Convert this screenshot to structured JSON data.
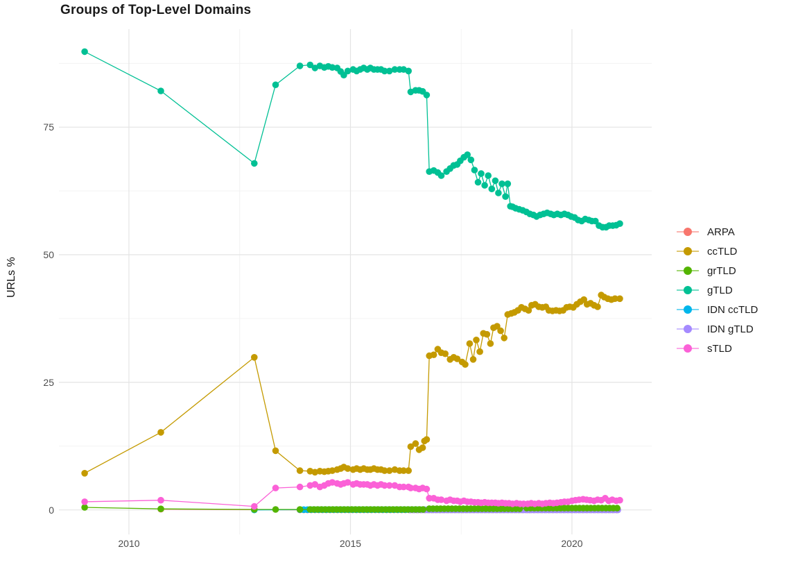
{
  "page": {
    "background": "#ffffff"
  },
  "chart_data": {
    "type": "line",
    "title": "Groups of Top-Level Domains",
    "xlabel": "",
    "ylabel": "URLs %",
    "xlim": [
      2008.42,
      2021.8
    ],
    "ylim": [
      -4.8,
      94.2
    ],
    "x_ticks": [
      {
        "value": 2010,
        "label": "2010"
      },
      {
        "value": 2015,
        "label": "2015"
      },
      {
        "value": 2020,
        "label": "2020"
      }
    ],
    "x_minor_ticks": [
      2012.5,
      2017.5
    ],
    "y_ticks": [
      {
        "value": 0,
        "label": "0"
      },
      {
        "value": 25,
        "label": "25"
      },
      {
        "value": 50,
        "label": "50"
      },
      {
        "value": 75,
        "label": "75"
      }
    ],
    "y_minor_ticks": [
      12.5,
      37.5,
      62.5,
      87.5
    ],
    "grid": "major+minor",
    "grid_major_color": "#e4e4e4",
    "grid_minor_color": "#f1f1f1",
    "legend_position": "right",
    "point_unit": [
      "year",
      "urls_percent"
    ],
    "draw_order": [
      "ARPA",
      "IDN ccTLD",
      "IDN gTLD",
      "gTLD",
      "ccTLD",
      "grTLD",
      "sTLD"
    ],
    "series": [
      {
        "name": "ARPA",
        "color": "#F8766D",
        "points": [
          [
            2010.72,
            0.15
          ],
          [
            2012.83,
            0.05
          ]
        ],
        "runs": [
          [
            2013.86,
            2021.08,
            0.02
          ]
        ]
      },
      {
        "name": "ccTLD",
        "color": "#C49A00",
        "points": [
          [
            2009,
            7.2
          ],
          [
            2010.72,
            15.2
          ],
          [
            2012.83,
            29.9
          ],
          [
            2013.31,
            11.6
          ],
          [
            2013.86,
            7.7
          ],
          [
            2014.09,
            7.6
          ],
          [
            2014.2,
            7.4
          ],
          [
            2014.31,
            7.6
          ],
          [
            2014.41,
            7.5
          ],
          [
            2014.5,
            7.6
          ],
          [
            2014.59,
            7.7
          ],
          [
            2014.7,
            7.9
          ],
          [
            2014.78,
            8.1
          ],
          [
            2014.85,
            8.4
          ],
          [
            2014.94,
            8.1
          ],
          [
            2015.06,
            7.9
          ],
          [
            2015.14,
            8.1
          ],
          [
            2015.22,
            7.9
          ],
          [
            2015.3,
            8.1
          ],
          [
            2015.38,
            7.9
          ],
          [
            2015.45,
            7.9
          ],
          [
            2015.53,
            8.1
          ],
          [
            2015.61,
            7.9
          ],
          [
            2015.69,
            7.9
          ],
          [
            2015.77,
            7.7
          ],
          [
            2015.88,
            7.7
          ],
          [
            2016,
            7.9
          ],
          [
            2016.11,
            7.7
          ],
          [
            2016.2,
            7.7
          ],
          [
            2016.31,
            7.7
          ],
          [
            2016.36,
            12.4
          ],
          [
            2016.47,
            13
          ],
          [
            2016.55,
            11.8
          ],
          [
            2016.63,
            12.2
          ],
          [
            2016.67,
            13.5
          ],
          [
            2016.72,
            13.8
          ],
          [
            2016.78,
            30.2
          ],
          [
            2016.88,
            30.4
          ],
          [
            2016.97,
            31.5
          ],
          [
            2017.05,
            30.8
          ],
          [
            2017.14,
            30.6
          ],
          [
            2017.25,
            29.5
          ],
          [
            2017.33,
            29.9
          ],
          [
            2017.41,
            29.6
          ],
          [
            2017.52,
            29
          ],
          [
            2017.59,
            28.5
          ],
          [
            2017.69,
            32.6
          ],
          [
            2017.77,
            29.5
          ],
          [
            2017.84,
            33.3
          ],
          [
            2017.92,
            31
          ],
          [
            2018,
            34.6
          ],
          [
            2018.08,
            34.4
          ],
          [
            2018.16,
            32.6
          ],
          [
            2018.23,
            35.7
          ],
          [
            2018.31,
            36
          ],
          [
            2018.39,
            35.1
          ],
          [
            2018.47,
            33.7
          ],
          [
            2018.55,
            38.3
          ],
          [
            2018.63,
            38.5
          ],
          [
            2018.7,
            38.7
          ],
          [
            2018.78,
            39.1
          ],
          [
            2018.86,
            39.7
          ],
          [
            2018.94,
            39.4
          ],
          [
            2019.02,
            39.1
          ],
          [
            2019.09,
            40.1
          ],
          [
            2019.17,
            40.3
          ],
          [
            2019.25,
            39.8
          ],
          [
            2019.33,
            39.7
          ],
          [
            2019.41,
            39.8
          ],
          [
            2019.48,
            39.1
          ],
          [
            2019.56,
            39
          ],
          [
            2019.64,
            39.1
          ],
          [
            2019.72,
            39
          ],
          [
            2019.8,
            39.1
          ],
          [
            2019.88,
            39.7
          ],
          [
            2019.95,
            39.8
          ],
          [
            2020.03,
            39.7
          ],
          [
            2020.11,
            40.3
          ],
          [
            2020.19,
            40.8
          ],
          [
            2020.27,
            41.2
          ],
          [
            2020.34,
            40.3
          ],
          [
            2020.42,
            40.5
          ],
          [
            2020.5,
            40.1
          ],
          [
            2020.58,
            39.8
          ],
          [
            2020.66,
            42.1
          ],
          [
            2020.73,
            41.7
          ],
          [
            2020.81,
            41.4
          ],
          [
            2020.89,
            41.2
          ],
          [
            2020.97,
            41.4
          ],
          [
            2021.08,
            41.4
          ]
        ],
        "runs": []
      },
      {
        "name": "grTLD",
        "color": "#53B400",
        "points": [
          [
            2009,
            0.5
          ],
          [
            2010.72,
            0.2
          ],
          [
            2012.83,
            0.1
          ],
          [
            2013.31,
            0.1
          ],
          [
            2013.86,
            0.1
          ]
        ],
        "runs": [
          [
            2014.09,
            2016.72,
            0.1
          ],
          [
            2016.78,
            2018.9,
            0.25
          ],
          [
            2018.98,
            2021.08,
            0.35
          ]
        ]
      },
      {
        "name": "gTLD",
        "color": "#00C094",
        "points": [
          [
            2009,
            89.8
          ],
          [
            2010.72,
            82.1
          ],
          [
            2012.83,
            67.9
          ],
          [
            2013.31,
            83.3
          ],
          [
            2013.86,
            87
          ],
          [
            2014.09,
            87.2
          ],
          [
            2014.2,
            86.6
          ],
          [
            2014.31,
            87
          ],
          [
            2014.41,
            86.7
          ],
          [
            2014.5,
            86.9
          ],
          [
            2014.59,
            86.7
          ],
          [
            2014.7,
            86.6
          ],
          [
            2014.78,
            85.9
          ],
          [
            2014.85,
            85.2
          ],
          [
            2014.94,
            86
          ],
          [
            2015.06,
            86.3
          ],
          [
            2015.14,
            86
          ],
          [
            2015.22,
            86.3
          ],
          [
            2015.3,
            86.6
          ],
          [
            2015.38,
            86.3
          ],
          [
            2015.45,
            86.6
          ],
          [
            2015.53,
            86.3
          ],
          [
            2015.61,
            86.3
          ],
          [
            2015.69,
            86.3
          ],
          [
            2015.77,
            86
          ],
          [
            2015.88,
            86
          ],
          [
            2016,
            86.3
          ],
          [
            2016.11,
            86.3
          ],
          [
            2016.2,
            86.3
          ],
          [
            2016.31,
            86
          ],
          [
            2016.36,
            81.9
          ],
          [
            2016.47,
            82.2
          ],
          [
            2016.55,
            82.2
          ],
          [
            2016.63,
            82
          ],
          [
            2016.72,
            81.3
          ],
          [
            2016.78,
            66.3
          ],
          [
            2016.88,
            66.5
          ],
          [
            2016.97,
            66.1
          ],
          [
            2017.05,
            65.5
          ],
          [
            2017.17,
            66.3
          ],
          [
            2017.25,
            66.9
          ],
          [
            2017.33,
            67.5
          ],
          [
            2017.41,
            67.7
          ],
          [
            2017.48,
            68.4
          ],
          [
            2017.56,
            69.1
          ],
          [
            2017.64,
            69.6
          ],
          [
            2017.72,
            68.6
          ],
          [
            2017.8,
            66.6
          ],
          [
            2017.88,
            64.2
          ],
          [
            2017.95,
            65.9
          ],
          [
            2018.03,
            63.6
          ],
          [
            2018.11,
            65.5
          ],
          [
            2018.19,
            62.9
          ],
          [
            2018.27,
            64.5
          ],
          [
            2018.34,
            62.1
          ],
          [
            2018.42,
            63.9
          ],
          [
            2018.5,
            61.4
          ],
          [
            2018.55,
            63.9
          ],
          [
            2018.61,
            59.5
          ],
          [
            2018.66,
            59.4
          ],
          [
            2018.73,
            59.1
          ],
          [
            2018.81,
            58.9
          ],
          [
            2018.89,
            58.7
          ],
          [
            2018.97,
            58.4
          ],
          [
            2019.05,
            58
          ],
          [
            2019.13,
            57.8
          ],
          [
            2019.2,
            57.5
          ],
          [
            2019.28,
            57.8
          ],
          [
            2019.36,
            58
          ],
          [
            2019.44,
            58.2
          ],
          [
            2019.52,
            58
          ],
          [
            2019.59,
            57.8
          ],
          [
            2019.67,
            58
          ],
          [
            2019.75,
            57.8
          ],
          [
            2019.83,
            58
          ],
          [
            2019.91,
            57.8
          ],
          [
            2019.98,
            57.5
          ],
          [
            2020.06,
            57.3
          ],
          [
            2020.14,
            56.8
          ],
          [
            2020.22,
            56.6
          ],
          [
            2020.3,
            57
          ],
          [
            2020.38,
            56.8
          ],
          [
            2020.45,
            56.6
          ],
          [
            2020.53,
            56.6
          ],
          [
            2020.61,
            55.7
          ],
          [
            2020.69,
            55.4
          ],
          [
            2020.77,
            55.4
          ],
          [
            2020.84,
            55.7
          ],
          [
            2020.92,
            55.7
          ],
          [
            2021,
            55.8
          ],
          [
            2021.08,
            56.1
          ]
        ],
        "runs": []
      },
      {
        "name": "IDN ccTLD",
        "color": "#00B6EB",
        "points": [
          [
            2012.83,
            0
          ]
        ],
        "runs": [
          [
            2013.86,
            2021.08,
            0.05
          ]
        ]
      },
      {
        "name": "IDN gTLD",
        "color": "#A58AFF",
        "points": [],
        "runs": [
          [
            2016.36,
            2021.08,
            0
          ]
        ]
      },
      {
        "name": "sTLD",
        "color": "#FB61D7",
        "points": [
          [
            2009,
            1.6
          ],
          [
            2010.72,
            1.9
          ],
          [
            2012.83,
            0.7
          ],
          [
            2013.31,
            4.3
          ],
          [
            2013.86,
            4.5
          ],
          [
            2014.09,
            4.8
          ],
          [
            2014.2,
            5
          ],
          [
            2014.31,
            4.5
          ],
          [
            2014.41,
            4.8
          ],
          [
            2014.5,
            5.2
          ],
          [
            2014.59,
            5.4
          ],
          [
            2014.7,
            5.2
          ],
          [
            2014.78,
            5
          ],
          [
            2014.85,
            5.2
          ],
          [
            2014.94,
            5.4
          ],
          [
            2015.06,
            5
          ],
          [
            2015.14,
            5.2
          ],
          [
            2015.22,
            5
          ],
          [
            2015.3,
            5
          ],
          [
            2015.38,
            5
          ],
          [
            2015.45,
            4.8
          ],
          [
            2015.53,
            5
          ],
          [
            2015.61,
            4.8
          ],
          [
            2015.69,
            5
          ],
          [
            2015.77,
            4.8
          ],
          [
            2015.88,
            4.8
          ],
          [
            2016,
            4.8
          ],
          [
            2016.11,
            4.5
          ],
          [
            2016.2,
            4.5
          ],
          [
            2016.31,
            4.5
          ],
          [
            2016.36,
            4.3
          ],
          [
            2016.47,
            4.3
          ],
          [
            2016.55,
            4.1
          ],
          [
            2016.63,
            4.3
          ],
          [
            2016.72,
            4.1
          ],
          [
            2016.78,
            2.3
          ],
          [
            2016.88,
            2.3
          ],
          [
            2016.97,
            2
          ],
          [
            2017.05,
            2
          ],
          [
            2017.17,
            1.8
          ],
          [
            2017.25,
            2
          ],
          [
            2017.33,
            1.8
          ],
          [
            2017.41,
            1.8
          ],
          [
            2017.48,
            1.6
          ],
          [
            2017.56,
            1.8
          ],
          [
            2017.64,
            1.6
          ],
          [
            2017.72,
            1.6
          ],
          [
            2017.8,
            1.5
          ],
          [
            2017.88,
            1.5
          ],
          [
            2017.95,
            1.4
          ],
          [
            2018.03,
            1.5
          ],
          [
            2018.11,
            1.4
          ],
          [
            2018.19,
            1.4
          ],
          [
            2018.27,
            1.4
          ],
          [
            2018.34,
            1.3
          ],
          [
            2018.42,
            1.4
          ],
          [
            2018.5,
            1.3
          ],
          [
            2018.58,
            1.3
          ],
          [
            2018.66,
            1.2
          ],
          [
            2018.75,
            1.3
          ],
          [
            2018.83,
            1.2
          ],
          [
            2018.91,
            1.2
          ],
          [
            2019,
            1.2
          ],
          [
            2019.08,
            1.3
          ],
          [
            2019.16,
            1.2
          ],
          [
            2019.25,
            1.3
          ],
          [
            2019.33,
            1.2
          ],
          [
            2019.41,
            1.3
          ],
          [
            2019.5,
            1.4
          ],
          [
            2019.58,
            1.3
          ],
          [
            2019.66,
            1.4
          ],
          [
            2019.75,
            1.5
          ],
          [
            2019.83,
            1.6
          ],
          [
            2019.91,
            1.6
          ],
          [
            2020,
            1.8
          ],
          [
            2020.08,
            1.9
          ],
          [
            2020.16,
            2
          ],
          [
            2020.25,
            2.1
          ],
          [
            2020.33,
            2
          ],
          [
            2020.41,
            1.9
          ],
          [
            2020.5,
            1.8
          ],
          [
            2020.58,
            2
          ],
          [
            2020.66,
            1.9
          ],
          [
            2020.75,
            2.3
          ],
          [
            2020.83,
            1.8
          ],
          [
            2020.91,
            2
          ],
          [
            2021,
            1.8
          ],
          [
            2021.08,
            1.9
          ]
        ],
        "runs": []
      }
    ]
  }
}
